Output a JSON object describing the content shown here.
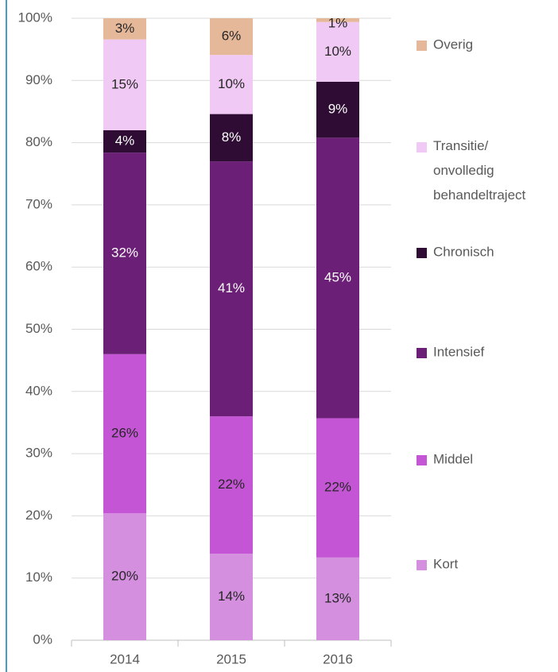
{
  "chart_data": {
    "type": "stacked_bar",
    "categories": [
      "2014",
      "2015",
      "2016"
    ],
    "series": [
      {
        "name": "Kort",
        "color": "#d48fdf",
        "values": [
          20.4,
          13.9,
          13.3
        ],
        "value_labels": [
          "20%",
          "14%",
          "13%"
        ]
      },
      {
        "name": "Middel",
        "color": "#c455d4",
        "values": [
          25.6,
          22.1,
          22.4
        ],
        "value_labels": [
          "26%",
          "22%",
          "22%"
        ]
      },
      {
        "name": "Intensief",
        "color": "#6b1f76",
        "values": [
          32.4,
          41.0,
          45.1
        ],
        "value_labels": [
          "32%",
          "41%",
          "45%"
        ]
      },
      {
        "name": "Chronisch",
        "color": "#2e0c33",
        "values": [
          3.6,
          7.6,
          9.0
        ],
        "value_labels": [
          "4%",
          "8%",
          "9%"
        ]
      },
      {
        "name": "Transitie/ onvolledig behandeltraject",
        "color": "#f0c9f4",
        "values": [
          14.6,
          9.5,
          9.6
        ],
        "value_labels": [
          "15%",
          "10%",
          "10%"
        ]
      },
      {
        "name": "Overig",
        "color": "#e6b89a",
        "values": [
          3.4,
          5.9,
          0.6
        ],
        "value_labels": [
          "3%",
          "6%",
          "1%"
        ]
      }
    ],
    "ylim": [
      0,
      100
    ],
    "yticks": [
      {
        "value": 0,
        "label": "0%"
      },
      {
        "value": 10,
        "label": "10%"
      },
      {
        "value": 20,
        "label": "20%"
      },
      {
        "value": 30,
        "label": "30%"
      },
      {
        "value": 40,
        "label": "40%"
      },
      {
        "value": 50,
        "label": "50%"
      },
      {
        "value": 60,
        "label": "60%"
      },
      {
        "value": 70,
        "label": "70%"
      },
      {
        "value": 80,
        "label": "80%"
      },
      {
        "value": 90,
        "label": "90%"
      },
      {
        "value": 100,
        "label": "100%"
      }
    ],
    "grid": true,
    "legend": "right"
  }
}
